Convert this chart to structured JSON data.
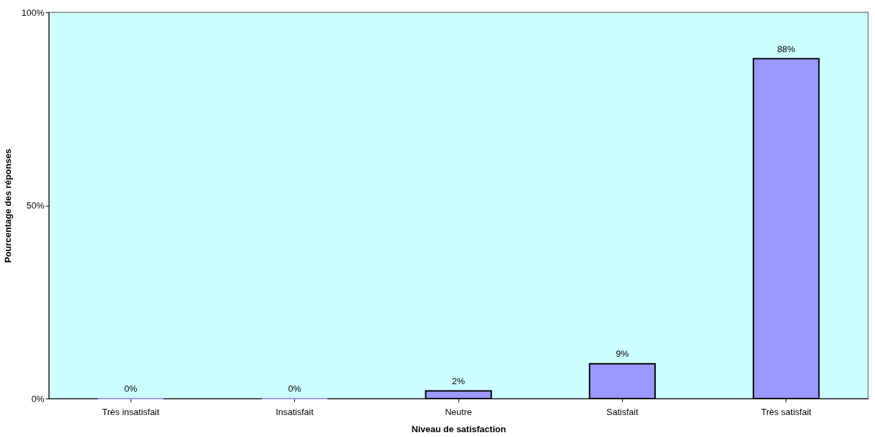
{
  "chart_data": {
    "type": "bar",
    "xlabel": "Niveau de satisfaction",
    "ylabel": "Pourcentage des réponses",
    "categories": [
      "Très insatisfait",
      "Insatisfait",
      "Neutre",
      "Satisfait",
      "Très satisfait"
    ],
    "values": [
      0,
      0,
      2,
      9,
      88
    ],
    "value_labels": [
      "0%",
      "0%",
      "2%",
      "9%",
      "88%"
    ],
    "color": "#9999ff",
    "ylim": [
      0,
      100
    ],
    "yticks": [
      {
        "value": 0,
        "label": "0%"
      },
      {
        "value": 50,
        "label": "50%"
      },
      {
        "value": 100,
        "label": "100%"
      }
    ],
    "grid": false
  }
}
